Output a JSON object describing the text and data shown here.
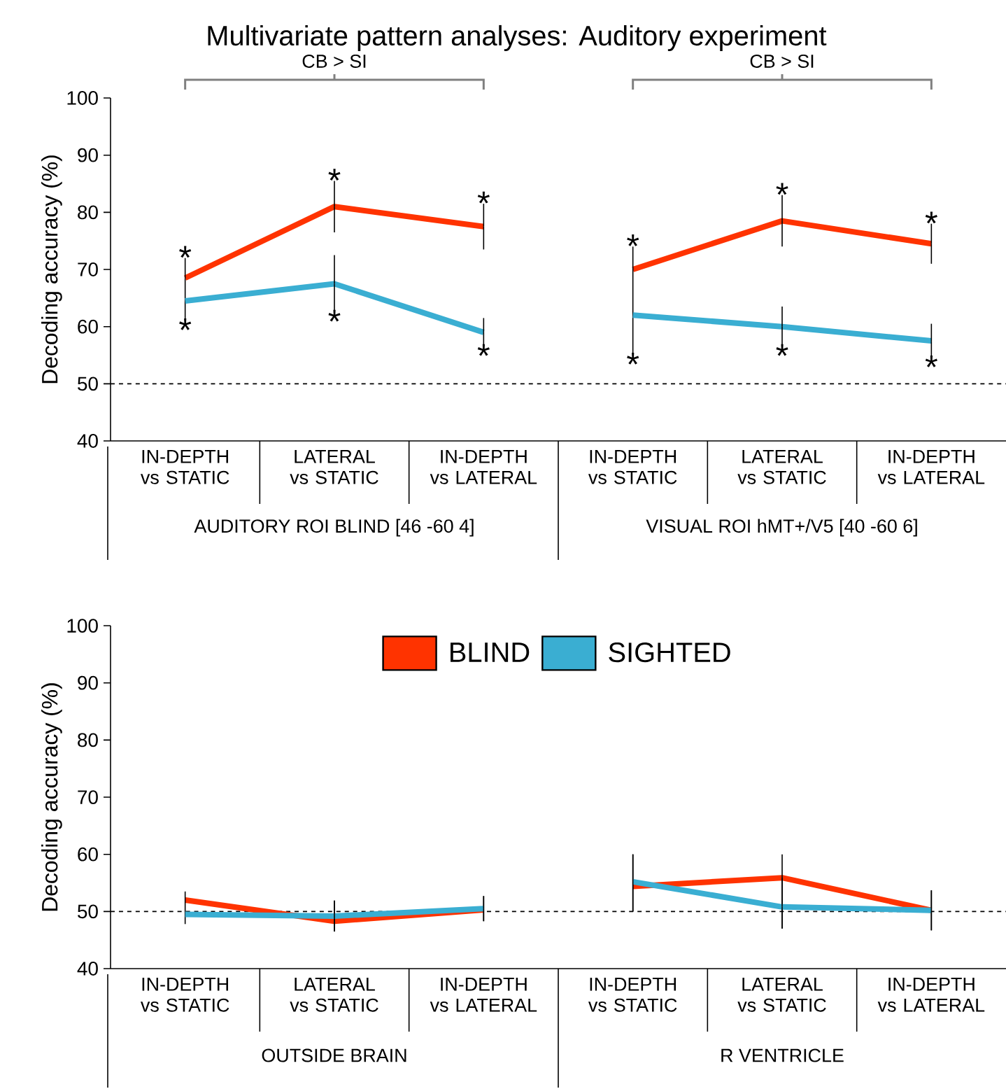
{
  "chart_data": [
    {
      "type": "line",
      "title": "Multivariate pattern analyses: Auditory experiment",
      "ylabel": "Decoding accuracy (%)",
      "categories": [
        "IN-DEPTH vs STATIC",
        "LATERAL vs STATIC",
        "IN-DEPTH vs LATERAL",
        "IN-DEPTH vs STATIC",
        "LATERAL vs STATIC",
        "IN-DEPTH vs LATERAL"
      ],
      "series": [
        {
          "color": "#ff3300",
          "values": [
            68.5,
            81,
            77.5,
            70,
            78.5,
            74.5
          ],
          "errors": [
            [
              61,
              72
            ],
            4.5,
            4,
            [
              55,
              74
            ],
            4.5,
            3.5
          ],
          "value_labels": [
            "*",
            "*",
            "*",
            "*",
            "*",
            "*"
          ]
        },
        {
          "color": "#3aaed2",
          "values": [
            64.5,
            67.5,
            59,
            62,
            60,
            57.5
          ],
          "errors": [
            null,
            5,
            2.5,
            null,
            3.5,
            3
          ],
          "value_labels": [
            "*",
            "*",
            "*",
            "*",
            "*",
            "*"
          ]
        }
      ],
      "ylim": [
        40,
        100
      ],
      "yticks": [
        40,
        50,
        60,
        70,
        80,
        90,
        100
      ],
      "ref_lines": [
        {
          "axis": "y",
          "value": 50,
          "line_style": "dashed"
        }
      ],
      "annotations": [
        "CB > SI",
        "CB > SI",
        "AUDITORY ROI BLIND [46 -60 4]",
        "VISUAL ROI hMT+/V5 [40 -60 6]"
      ]
    },
    {
      "type": "line",
      "ylabel": "Decoding accuracy (%)",
      "categories": [
        "IN-DEPTH vs STATIC",
        "LATERAL vs STATIC",
        "IN-DEPTH vs LATERAL",
        "IN-DEPTH vs STATIC",
        "LATERAL vs STATIC",
        "IN-DEPTH vs LATERAL"
      ],
      "series": [
        {
          "name": "BLIND",
          "color": "#ff3300",
          "values": [
            52,
            48.3,
            50.3,
            54.4,
            55.9,
            50.2
          ],
          "errors": [
            [
              47.8,
              53.5
            ],
            [
              46.5,
              51.9
            ],
            [
              48.3,
              52.7
            ],
            [
              50,
              60
            ],
            [
              47,
              60
            ],
            3.5
          ]
        },
        {
          "name": "SIGHTED",
          "color": "#3aaed2",
          "values": [
            49.5,
            49.2,
            50.5,
            55.2,
            50.8,
            50.2
          ],
          "errors": [
            null,
            2.7,
            2.2,
            [
              50,
              60
            ],
            [
              47,
              55.9
            ],
            3.5
          ]
        }
      ],
      "ylim": [
        40,
        100
      ],
      "yticks": [
        40,
        50,
        60,
        70,
        80,
        90,
        100
      ],
      "ref_lines": [
        {
          "axis": "y",
          "value": 50,
          "line_style": "dashed"
        }
      ],
      "legend": "top",
      "annotations": [
        "OUTSIDE BRAIN",
        "R VENTRICLE"
      ]
    }
  ]
}
